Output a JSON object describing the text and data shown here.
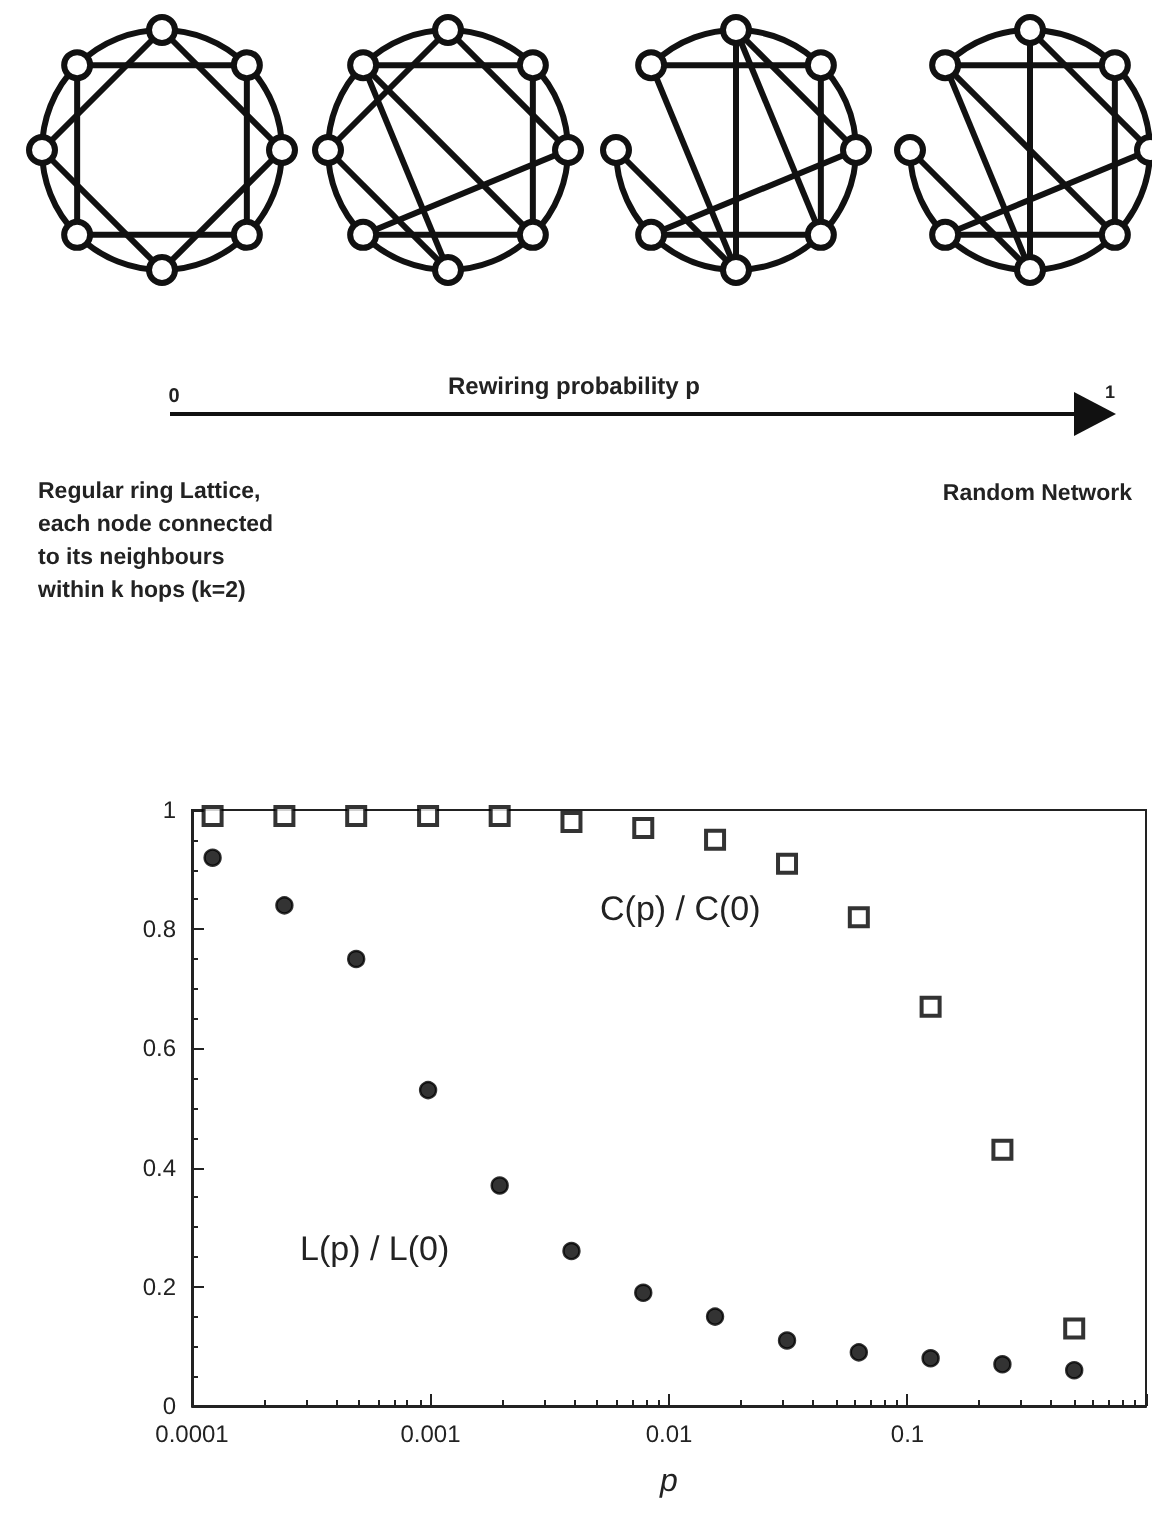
{
  "chart_data": {
    "type": "scatter",
    "xlabel": "p",
    "annotations": [
      "Rewiring probability p",
      "0",
      "1",
      "Regular ring Lattice,\neach node connected\nto its neighbours\nwithin k hops (k=2)",
      "Random Network"
    ],
    "x": [
      0.000122,
      0.000244,
      0.000488,
      0.000977,
      0.00195,
      0.0039,
      0.0078,
      0.0156,
      0.03125,
      0.0625,
      0.125,
      0.25,
      0.5
    ],
    "series": [
      {
        "name": "C(p) / C(0)",
        "color": "#000000",
        "marker": "square",
        "values": [
          0.99,
          0.99,
          0.99,
          0.99,
          0.99,
          0.98,
          0.97,
          0.95,
          0.91,
          0.82,
          0.67,
          0.43,
          0.13
        ]
      },
      {
        "name": "L(p) / L(0)",
        "color": "#000000",
        "marker": "circle",
        "values": [
          0.92,
          0.84,
          0.75,
          0.53,
          0.37,
          0.26,
          0.19,
          0.15,
          0.11,
          0.09,
          0.08,
          0.07,
          0.06
        ]
      }
    ],
    "log": "x",
    "xlim": [
      0.0001,
      1
    ],
    "xticks": [
      0.0001,
      0.001,
      0.01,
      0.1,
      {
        "value": 1,
        "label": null
      }
    ],
    "ylim": [
      0,
      1
    ],
    "yticks": [
      0,
      0.2,
      0.4,
      0.6,
      0.8,
      1
    ],
    "grid": false,
    "legend": false
  }
}
